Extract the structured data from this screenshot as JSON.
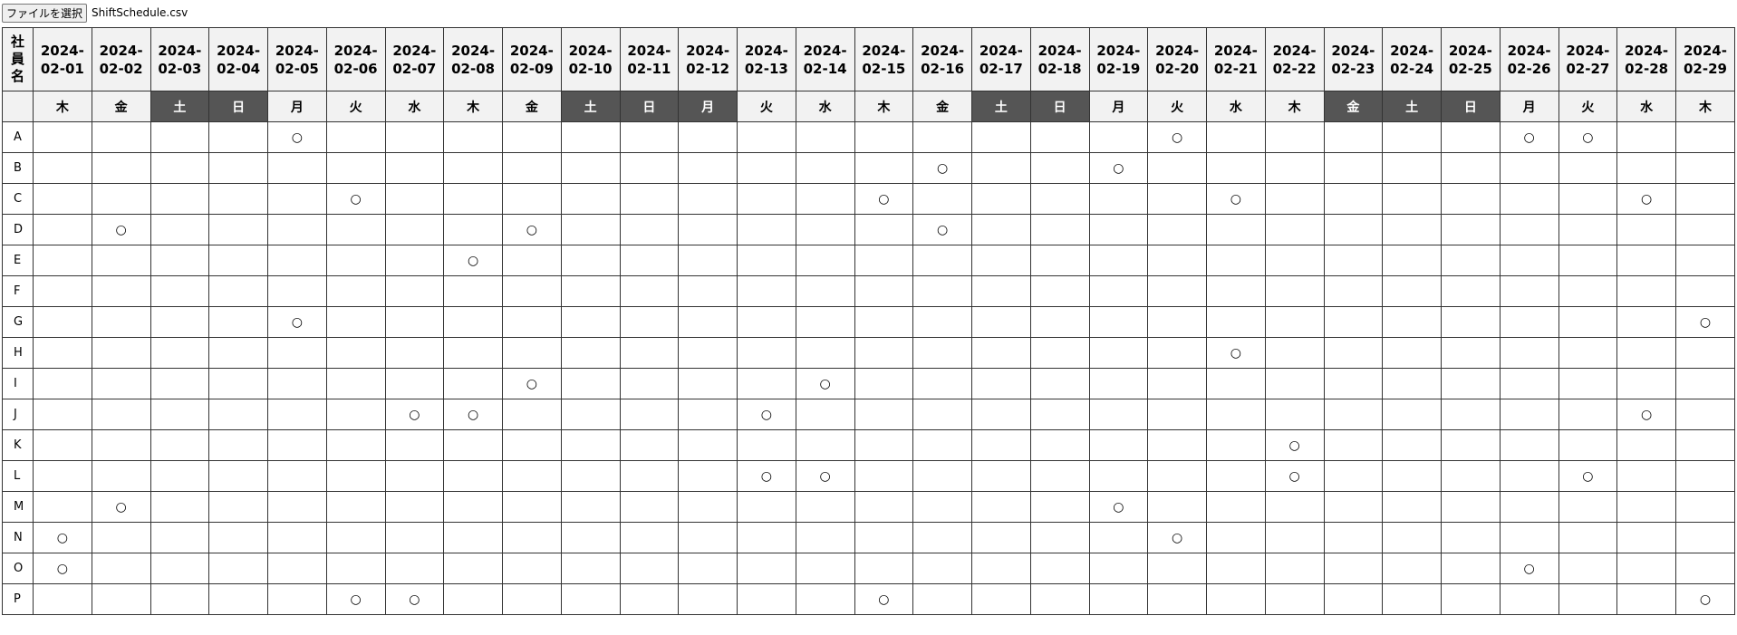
{
  "file_input": {
    "button": "ファイルを選択",
    "file_name": "ShiftSchedule.csv"
  },
  "table": {
    "corner": "社員名",
    "days": [
      {
        "date": "2024-02-01",
        "weekday": "木",
        "off": false
      },
      {
        "date": "2024-02-02",
        "weekday": "金",
        "off": false
      },
      {
        "date": "2024-02-03",
        "weekday": "土",
        "off": true
      },
      {
        "date": "2024-02-04",
        "weekday": "日",
        "off": true
      },
      {
        "date": "2024-02-05",
        "weekday": "月",
        "off": false
      },
      {
        "date": "2024-02-06",
        "weekday": "火",
        "off": false
      },
      {
        "date": "2024-02-07",
        "weekday": "水",
        "off": false
      },
      {
        "date": "2024-02-08",
        "weekday": "木",
        "off": false
      },
      {
        "date": "2024-02-09",
        "weekday": "金",
        "off": false
      },
      {
        "date": "2024-02-10",
        "weekday": "土",
        "off": true
      },
      {
        "date": "2024-02-11",
        "weekday": "日",
        "off": true
      },
      {
        "date": "2024-02-12",
        "weekday": "月",
        "off": true
      },
      {
        "date": "2024-02-13",
        "weekday": "火",
        "off": false
      },
      {
        "date": "2024-02-14",
        "weekday": "水",
        "off": false
      },
      {
        "date": "2024-02-15",
        "weekday": "木",
        "off": false
      },
      {
        "date": "2024-02-16",
        "weekday": "金",
        "off": false
      },
      {
        "date": "2024-02-17",
        "weekday": "土",
        "off": true
      },
      {
        "date": "2024-02-18",
        "weekday": "日",
        "off": true
      },
      {
        "date": "2024-02-19",
        "weekday": "月",
        "off": false
      },
      {
        "date": "2024-02-20",
        "weekday": "火",
        "off": false
      },
      {
        "date": "2024-02-21",
        "weekday": "水",
        "off": false
      },
      {
        "date": "2024-02-22",
        "weekday": "木",
        "off": false
      },
      {
        "date": "2024-02-23",
        "weekday": "金",
        "off": true
      },
      {
        "date": "2024-02-24",
        "weekday": "土",
        "off": true
      },
      {
        "date": "2024-02-25",
        "weekday": "日",
        "off": true
      },
      {
        "date": "2024-02-26",
        "weekday": "月",
        "off": false
      },
      {
        "date": "2024-02-27",
        "weekday": "火",
        "off": false
      },
      {
        "date": "2024-02-28",
        "weekday": "水",
        "off": false
      },
      {
        "date": "2024-02-29",
        "weekday": "木",
        "off": false
      }
    ],
    "rows": [
      {
        "name": "A",
        "cells": [
          null,
          null,
          null,
          null,
          "○",
          null,
          null,
          null,
          null,
          null,
          null,
          null,
          null,
          null,
          null,
          null,
          null,
          null,
          null,
          "○",
          null,
          null,
          null,
          null,
          null,
          "○",
          "○",
          null,
          null
        ]
      },
      {
        "name": "B",
        "cells": [
          null,
          null,
          null,
          null,
          null,
          null,
          null,
          null,
          null,
          null,
          null,
          null,
          null,
          null,
          null,
          "○",
          null,
          null,
          "○",
          null,
          null,
          null,
          null,
          null,
          null,
          null,
          null,
          null,
          null
        ]
      },
      {
        "name": "C",
        "cells": [
          null,
          null,
          null,
          null,
          null,
          "○",
          null,
          null,
          null,
          null,
          null,
          null,
          null,
          null,
          "○",
          null,
          null,
          null,
          null,
          null,
          "○",
          null,
          null,
          null,
          null,
          null,
          null,
          "○",
          null
        ]
      },
      {
        "name": "D",
        "cells": [
          null,
          "○",
          null,
          null,
          null,
          null,
          null,
          null,
          "○",
          null,
          null,
          null,
          null,
          null,
          null,
          "○",
          null,
          null,
          null,
          null,
          null,
          null,
          null,
          null,
          null,
          null,
          null,
          null,
          null
        ]
      },
      {
        "name": "E",
        "cells": [
          null,
          null,
          null,
          null,
          null,
          null,
          null,
          "○",
          null,
          null,
          null,
          null,
          null,
          null,
          null,
          null,
          null,
          null,
          null,
          null,
          null,
          null,
          null,
          null,
          null,
          null,
          null,
          null,
          null
        ]
      },
      {
        "name": "F",
        "cells": [
          null,
          null,
          null,
          null,
          null,
          null,
          null,
          null,
          null,
          null,
          null,
          null,
          null,
          null,
          null,
          null,
          null,
          null,
          null,
          null,
          null,
          null,
          null,
          null,
          null,
          null,
          null,
          null,
          null
        ]
      },
      {
        "name": "G",
        "cells": [
          null,
          null,
          null,
          null,
          "○",
          null,
          null,
          null,
          null,
          null,
          null,
          null,
          null,
          null,
          null,
          null,
          null,
          null,
          null,
          null,
          null,
          null,
          null,
          null,
          null,
          null,
          null,
          null,
          "○"
        ]
      },
      {
        "name": "H",
        "cells": [
          null,
          null,
          null,
          null,
          null,
          null,
          null,
          null,
          null,
          null,
          null,
          null,
          null,
          null,
          null,
          null,
          null,
          null,
          null,
          null,
          "○",
          null,
          null,
          null,
          null,
          null,
          null,
          null,
          null
        ]
      },
      {
        "name": "I",
        "cells": [
          null,
          null,
          null,
          null,
          null,
          null,
          null,
          null,
          "○",
          null,
          null,
          null,
          null,
          "○",
          null,
          null,
          null,
          null,
          null,
          null,
          null,
          null,
          null,
          null,
          null,
          null,
          null,
          null,
          null
        ]
      },
      {
        "name": "J",
        "cells": [
          null,
          null,
          null,
          null,
          null,
          null,
          "○",
          "○",
          null,
          null,
          null,
          null,
          "○",
          null,
          null,
          null,
          null,
          null,
          null,
          null,
          null,
          null,
          null,
          null,
          null,
          null,
          null,
          "○",
          null
        ]
      },
      {
        "name": "K",
        "cells": [
          null,
          null,
          null,
          null,
          null,
          null,
          null,
          null,
          null,
          null,
          null,
          null,
          null,
          null,
          null,
          null,
          null,
          null,
          null,
          null,
          null,
          "○",
          null,
          null,
          null,
          null,
          null,
          null,
          null
        ]
      },
      {
        "name": "L",
        "cells": [
          null,
          null,
          null,
          null,
          null,
          null,
          null,
          null,
          null,
          null,
          null,
          null,
          "○",
          "○",
          null,
          null,
          null,
          null,
          null,
          null,
          null,
          "○",
          null,
          null,
          null,
          null,
          "○",
          null,
          null
        ]
      },
      {
        "name": "M",
        "cells": [
          null,
          "○",
          null,
          null,
          null,
          null,
          null,
          null,
          null,
          null,
          null,
          null,
          null,
          null,
          null,
          null,
          null,
          null,
          "○",
          null,
          null,
          null,
          null,
          null,
          null,
          null,
          null,
          null,
          null
        ]
      },
      {
        "name": "N",
        "cells": [
          "○",
          null,
          null,
          null,
          null,
          null,
          null,
          null,
          null,
          null,
          null,
          null,
          null,
          null,
          null,
          null,
          null,
          null,
          null,
          "○",
          null,
          null,
          null,
          null,
          null,
          null,
          null,
          null,
          null
        ]
      },
      {
        "name": "O",
        "cells": [
          "○",
          null,
          null,
          null,
          null,
          null,
          null,
          null,
          null,
          null,
          null,
          null,
          null,
          null,
          null,
          null,
          null,
          null,
          null,
          null,
          null,
          null,
          null,
          null,
          null,
          "○",
          null,
          null,
          null
        ]
      },
      {
        "name": "P",
        "cells": [
          null,
          null,
          null,
          null,
          null,
          "○",
          "○",
          null,
          null,
          null,
          null,
          null,
          null,
          null,
          "○",
          null,
          null,
          null,
          null,
          null,
          null,
          null,
          null,
          null,
          null,
          null,
          null,
          null,
          "○"
        ]
      }
    ]
  }
}
